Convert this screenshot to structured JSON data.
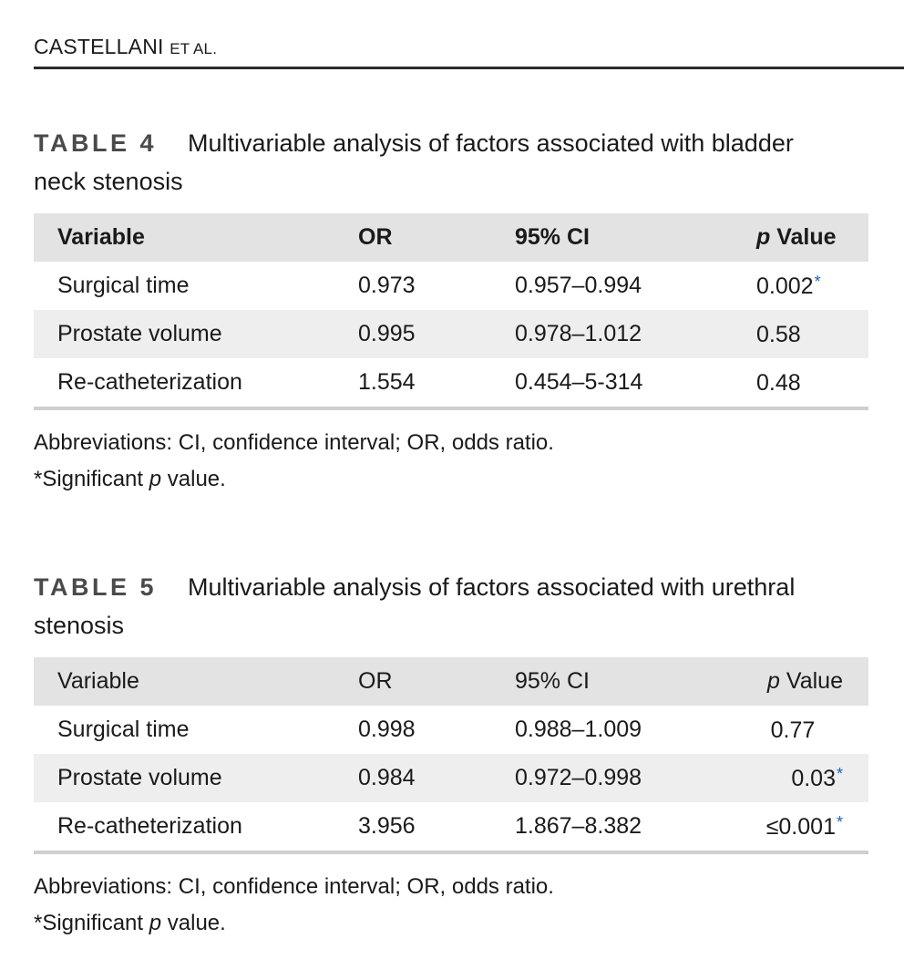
{
  "running_head": {
    "name": "CASTELLANI",
    "suffix": "ET AL."
  },
  "tables": [
    {
      "label": "TABLE 4",
      "caption_line1": "Multivariable analysis of factors associated with bladder",
      "caption_line2": "neck stenosis",
      "headers": {
        "variable": "Variable",
        "or": "OR",
        "ci": "95% CI",
        "p_italic": "p",
        "p_rest": " Value"
      },
      "rows": [
        {
          "variable": "Surgical time",
          "or": "0.973",
          "ci": "0.957–0.994",
          "p": "0.002",
          "asterisk": "*"
        },
        {
          "variable": "Prostate volume",
          "or": "0.995",
          "ci": "0.978–1.012",
          "p": "0.58",
          "asterisk": ""
        },
        {
          "variable": "Re-catheterization",
          "or": "1.554",
          "ci": "0.454–5-314",
          "p": "0.48",
          "asterisk": ""
        }
      ],
      "abbreviations": "Abbreviations: CI, confidence interval; OR, odds ratio.",
      "significance_pre": "*Significant ",
      "significance_italic": "p",
      "significance_post": " value."
    },
    {
      "label": "TABLE 5",
      "caption_line1": "Multivariable analysis of factors associated with urethral",
      "caption_line2": "stenosis",
      "headers": {
        "variable": "Variable",
        "or": "OR",
        "ci": "95% CI",
        "p_italic": "p",
        "p_rest": " Value"
      },
      "rows": [
        {
          "variable": "Surgical time",
          "or": "0.998",
          "ci": "0.988–1.009",
          "p": "0.77",
          "asterisk": ""
        },
        {
          "variable": "Prostate volume",
          "or": "0.984",
          "ci": "0.972–0.998",
          "p": "0.03",
          "asterisk": "*"
        },
        {
          "variable": "Re-catheterization",
          "or": "3.956",
          "ci": "1.867–8.382",
          "p": "≤0.001",
          "asterisk": "*"
        }
      ],
      "abbreviations": "Abbreviations: CI, confidence interval; OR, odds ratio.",
      "significance_pre": "*Significant ",
      "significance_italic": "p",
      "significance_post": " value."
    }
  ],
  "colors": {
    "header_row": "#e3e3e3",
    "shaded_row": "#eeeeee",
    "asterisk": "#1f5fbf",
    "rule": "#2b2b2b"
  }
}
